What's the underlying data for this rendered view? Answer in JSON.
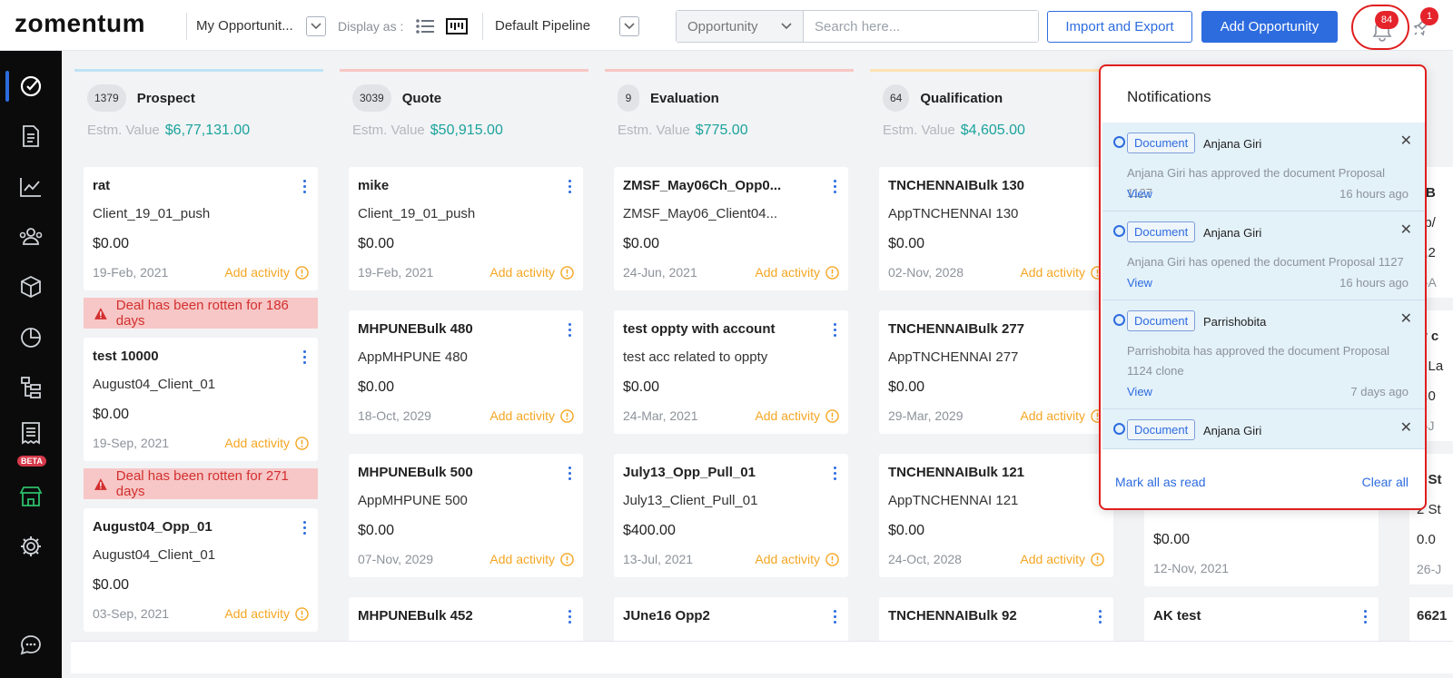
{
  "brand": {
    "logo_text": "zomentum"
  },
  "header": {
    "view_name": "My Opportunit...",
    "display_as_label": "Display as :",
    "pipeline": "Default Pipeline",
    "search_type": "Opportunity",
    "search_placeholder": "Search here...",
    "import_export_label": "Import and Export",
    "add_opportunity_label": "Add Opportunity",
    "notification_count": "84",
    "rocket_count": "1"
  },
  "sidebar": {
    "items": [
      "opportunities-icon",
      "documents-icon",
      "reports-icon",
      "clients-icon",
      "products-icon",
      "dashboard-icon",
      "workflows-icon",
      "billing-icon",
      "marketplace-icon",
      "settings-icon",
      "chat-icon"
    ],
    "beta_label": "BETA"
  },
  "columns": [
    {
      "count": "1379",
      "title": "Prospect",
      "estm_label": "Estm. Value",
      "estm_value": "$6,77,131.00",
      "accent": "#bfe3f5",
      "cards": [
        {
          "title": "rat",
          "client": "Client_19_01_push",
          "amount": "$0.00",
          "date": "19-Feb, 2021",
          "activity": "Add activity",
          "rotten": "Deal has been rotten for 186 days"
        },
        {
          "title": "test 10000",
          "client": "August04_Client_01",
          "amount": "$0.00",
          "date": "19-Sep, 2021",
          "activity": "Add activity",
          "rotten": "Deal has been rotten for 271 days"
        },
        {
          "title": "August04_Opp_01",
          "client": "August04_Client_01",
          "amount": "$0.00",
          "date": "03-Sep, 2021",
          "activity": "Add activity"
        }
      ]
    },
    {
      "count": "3039",
      "title": "Quote",
      "estm_label": "Estm. Value",
      "estm_value": "$50,915.00",
      "accent": "#f7c7c4",
      "cards": [
        {
          "title": "mike",
          "client": "Client_19_01_push",
          "amount": "$0.00",
          "date": "19-Feb, 2021",
          "activity": "Add activity"
        },
        {
          "title": "MHPUNEBulk 480",
          "client": "AppMHPUNE 480",
          "amount": "$0.00",
          "date": "18-Oct, 2029",
          "activity": "Add activity"
        },
        {
          "title": "MHPUNEBulk 500",
          "client": "AppMHPUNE 500",
          "amount": "$0.00",
          "date": "07-Nov, 2029",
          "activity": "Add activity"
        },
        {
          "title": "MHPUNEBulk 452"
        }
      ]
    },
    {
      "count": "9",
      "title": "Evaluation",
      "estm_label": "Estm. Value",
      "estm_value": "$775.00",
      "accent": "#f7c7c4",
      "cards": [
        {
          "title": "ZMSF_May06Ch_Opp0...",
          "client": "ZMSF_May06_Client04...",
          "amount": "$0.00",
          "date": "24-Jun, 2021",
          "activity": "Add activity"
        },
        {
          "title": "test oppty with account",
          "client": "test acc related to oppty",
          "amount": "$0.00",
          "date": "24-Mar, 2021",
          "activity": "Add activity"
        },
        {
          "title": "July13_Opp_Pull_01",
          "client": "July13_Client_Pull_01",
          "amount": "$400.00",
          "date": "13-Jul, 2021",
          "activity": "Add activity"
        },
        {
          "title": "JUne16 Opp2"
        }
      ]
    },
    {
      "count": "64",
      "title": "Qualification",
      "estm_label": "Estm. Value",
      "estm_value": "$4,605.00",
      "accent": "#fde3b3",
      "cards": [
        {
          "title": "TNCHENNAIBulk 130",
          "client": "AppTNCHENNAI 130",
          "amount": "$0.00",
          "date": "02-Nov, 2028",
          "activity": "Add activity"
        },
        {
          "title": "TNCHENNAIBulk 277",
          "client": "AppTNCHENNAI 277",
          "amount": "$0.00",
          "date": "29-Mar, 2029",
          "activity": "Add activity"
        },
        {
          "title": "TNCHENNAIBulk 121",
          "client": "AppTNCHENNAI 121",
          "amount": "$0.00",
          "date": "24-Oct, 2028",
          "activity": "Add activity"
        },
        {
          "title": "TNCHENNAIBulk 92"
        }
      ]
    },
    {
      "cards": [
        {
          "amount": "$0.00",
          "date": "12-Nov, 2021"
        },
        {
          "title": "AK test"
        }
      ]
    },
    {
      "fragments": [
        "riB",
        "pp/",
        "1,2",
        "2-A",
        "w c",
        "4 La",
        "0.0",
        "9-J",
        "2 St",
        "2 St",
        "0.0",
        "26-J",
        "6621"
      ]
    }
  ],
  "notifications": {
    "title": "Notifications",
    "items": [
      {
        "tag": "Document",
        "user": "Anjana Giri",
        "text": "Anjana Giri has approved the document Proposal 1127",
        "view": "View",
        "time": "16 hours ago"
      },
      {
        "tag": "Document",
        "user": "Anjana Giri",
        "text": "Anjana Giri has opened the document Proposal 1127",
        "view": "View",
        "time": "16 hours ago"
      },
      {
        "tag": "Document",
        "user": "Parrishobita",
        "text": "Parrishobita has approved the document Proposal 1124 clone",
        "view": "View",
        "time": "7 days ago"
      },
      {
        "tag": "Document",
        "user": "Anjana Giri"
      }
    ],
    "mark_all_label": "Mark all as read",
    "clear_all_label": "Clear all"
  }
}
